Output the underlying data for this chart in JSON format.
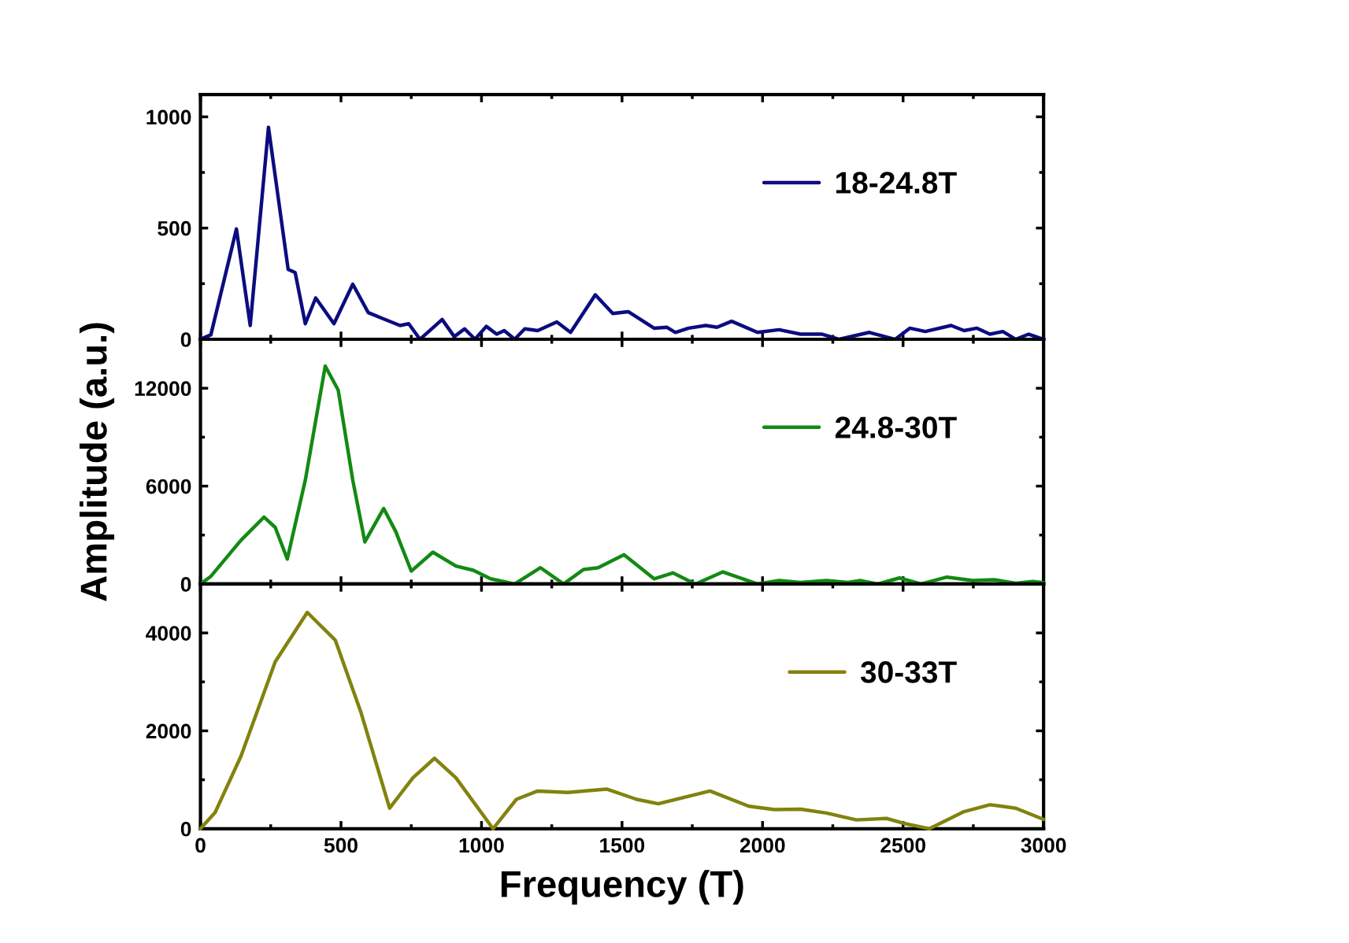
{
  "chart_data": [
    {
      "type": "line",
      "xlim": [
        0,
        3000
      ],
      "xticks": [
        0,
        500,
        1000,
        1500,
        2000,
        2500,
        3000
      ],
      "ylim": [
        0,
        1100
      ],
      "yticks": [
        0,
        500,
        1000
      ],
      "tick_labels": "y",
      "legend": "top right",
      "grid": false,
      "series": [
        {
          "name": "18-24.8T",
          "color": "#0c0c80",
          "x": [
            0,
            37,
            128,
            177,
            242,
            312,
            337,
            373,
            410,
            475,
            542,
            597,
            649,
            710,
            741,
            781,
            860,
            903,
            940,
            977,
            1017,
            1054,
            1081,
            1118,
            1154,
            1200,
            1268,
            1317,
            1405,
            1467,
            1522,
            1614,
            1660,
            1690,
            1737,
            1798,
            1838,
            1890,
            1982,
            2059,
            2135,
            2212,
            2273,
            2380,
            2472,
            2524,
            2579,
            2671,
            2717,
            2763,
            2809,
            2855,
            2901,
            2947,
            3000
          ],
          "values": [
            0,
            20,
            496,
            62,
            953,
            314,
            300,
            70,
            186,
            70,
            248,
            120,
            93,
            62,
            70,
            0,
            89,
            12,
            47,
            0,
            58,
            23,
            39,
            0,
            47,
            39,
            78,
            31,
            200,
            116,
            124,
            50,
            54,
            31,
            50,
            62,
            54,
            81,
            31,
            43,
            23,
            23,
            0,
            31,
            0,
            50,
            35,
            62,
            39,
            50,
            23,
            35,
            0,
            23,
            0
          ]
        }
      ]
    },
    {
      "type": "line",
      "xlim": [
        0,
        3000
      ],
      "xticks": [
        0,
        500,
        1000,
        1500,
        2000,
        2500,
        3000
      ],
      "ylim": [
        0,
        15000
      ],
      "yticks": [
        0,
        6000,
        12000
      ],
      "tick_labels": "y",
      "legend": "top right",
      "grid": false,
      "ylabel": "Amplitude (a.u.)",
      "series": [
        {
          "name": "24.8-30T",
          "color": "#138a13",
          "x": [
            0,
            37,
            144,
            226,
            266,
            309,
            373,
            444,
            490,
            542,
            585,
            652,
            695,
            750,
            827,
            909,
            971,
            1032,
            1118,
            1210,
            1292,
            1363,
            1415,
            1507,
            1614,
            1681,
            1761,
            1859,
            1982,
            2059,
            2135,
            2227,
            2304,
            2349,
            2411,
            2487,
            2564,
            2656,
            2748,
            2824,
            2901,
            2962,
            3000
          ],
          "values": [
            0,
            470,
            2680,
            4100,
            3470,
            1530,
            6360,
            13360,
            11890,
            6360,
            2580,
            4630,
            3210,
            790,
            1950,
            1100,
            840,
            320,
            0,
            1000,
            0,
            890,
            1000,
            1790,
            320,
            680,
            0,
            740,
            0,
            210,
            100,
            210,
            100,
            210,
            0,
            370,
            0,
            420,
            210,
            260,
            50,
            160,
            80
          ]
        }
      ]
    },
    {
      "type": "line",
      "xlim": [
        0,
        3000
      ],
      "xticks": [
        0,
        500,
        1000,
        1500,
        2000,
        2500,
        3000
      ],
      "ylim": [
        0,
        5000
      ],
      "yticks": [
        0,
        2000,
        4000
      ],
      "legend": "top right",
      "grid": false,
      "xlabel": "Frequency (T)",
      "series": [
        {
          "name": "30-33T",
          "color": "#82820f",
          "x": [
            0,
            52,
            144,
            266,
            380,
            480,
            572,
            673,
            756,
            833,
            909,
            1041,
            1124,
            1200,
            1307,
            1445,
            1552,
            1629,
            1813,
            1951,
            2043,
            2135,
            2227,
            2334,
            2441,
            2502,
            2594,
            2717,
            2809,
            2901,
            3000
          ],
          "values": [
            0,
            330,
            1480,
            3410,
            4420,
            3850,
            2360,
            420,
            1040,
            1440,
            1040,
            0,
            600,
            770,
            740,
            810,
            600,
            510,
            770,
            460,
            390,
            400,
            320,
            180,
            210,
            110,
            0,
            350,
            490,
            420,
            190
          ]
        }
      ]
    }
  ]
}
